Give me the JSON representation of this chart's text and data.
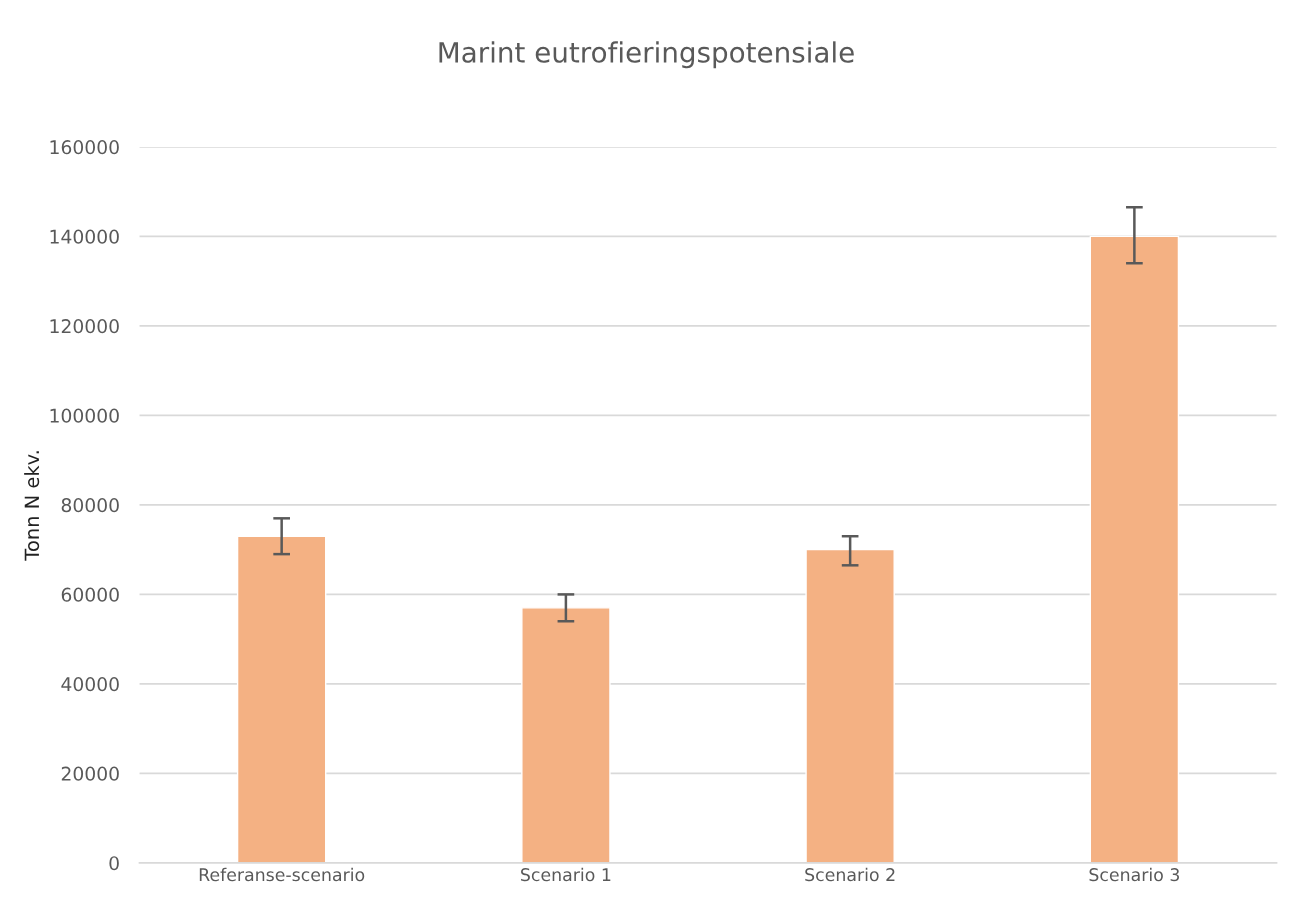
{
  "chart_data": {
    "type": "bar",
    "title": "Marint eutrofieringspotensiale",
    "ylabel": "Tonn N ekv.",
    "categories": [
      "Referanse-scenario",
      "Scenario 1",
      "Scenario 2",
      "Scenario 3"
    ],
    "series": [
      {
        "color": "#f4b183",
        "values": [
          73000,
          57000,
          70000,
          140000
        ],
        "errors": [
          [
            69000,
            77000
          ],
          [
            54000,
            60000
          ],
          [
            66500,
            73000
          ],
          [
            134000,
            146500
          ]
        ]
      }
    ],
    "ylim": [
      0,
      160000
    ],
    "yticks": [
      0,
      20000,
      40000,
      60000,
      80000,
      100000,
      120000,
      140000,
      160000
    ],
    "grid": "y",
    "legend": false
  }
}
